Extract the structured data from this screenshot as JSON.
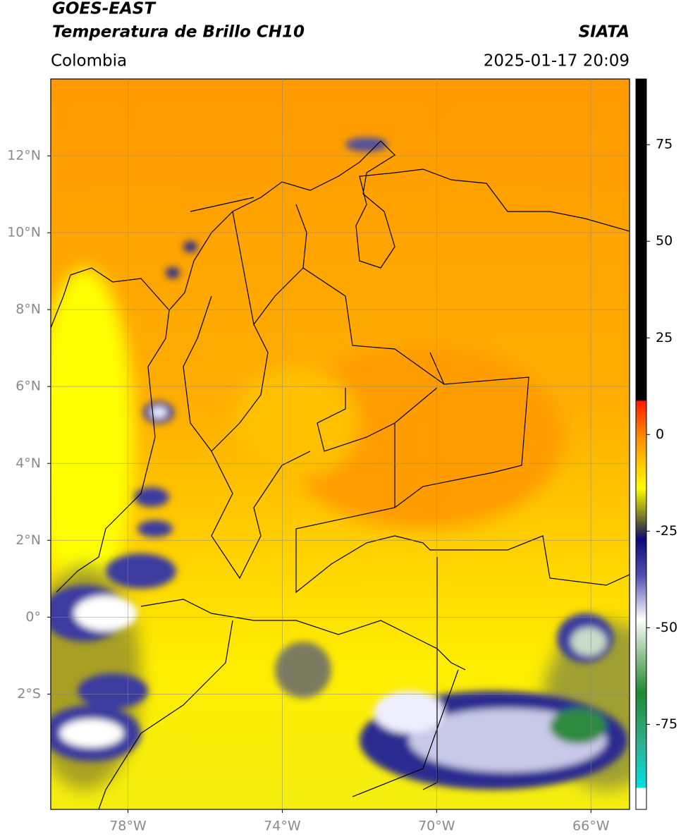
{
  "header": {
    "title_line1": "GOES-EAST",
    "title_line2": "Temperatura de Brillo CH10",
    "source": "SIATA",
    "region": "Colombia",
    "timestamp": "2025-01-17 20:09"
  },
  "map": {
    "xlim": [
      -80,
      -65
    ],
    "ylim": [
      -5,
      14
    ],
    "xticks": [
      {
        "value": -78,
        "label": "78°W"
      },
      {
        "value": -74,
        "label": "74°W"
      },
      {
        "value": -70,
        "label": "70°W"
      },
      {
        "value": -66,
        "label": "66°W"
      }
    ],
    "yticks": [
      {
        "value": 12,
        "label": "12°N"
      },
      {
        "value": 10,
        "label": "10°N"
      },
      {
        "value": 8,
        "label": "8°N"
      },
      {
        "value": 6,
        "label": "6°N"
      },
      {
        "value": 4,
        "label": "4°N"
      },
      {
        "value": 2,
        "label": "2°N"
      },
      {
        "value": 0,
        "label": "0°"
      },
      {
        "value": -2,
        "label": "2°S"
      }
    ],
    "grid": true
  },
  "colorbar": {
    "lim": [
      -97,
      92
    ],
    "ticks": [
      75,
      50,
      25,
      0,
      -25,
      -50,
      -75
    ]
  }
}
